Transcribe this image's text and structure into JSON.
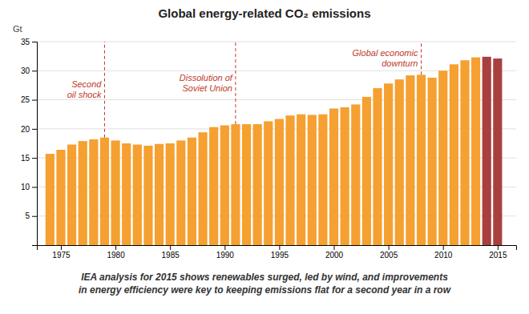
{
  "chart_data": {
    "type": "bar",
    "title": "Global energy-related CO₂ emissions",
    "y_label": "Gt",
    "x": [
      1974,
      1975,
      1976,
      1977,
      1978,
      1979,
      1980,
      1981,
      1982,
      1983,
      1984,
      1985,
      1986,
      1987,
      1988,
      1989,
      1990,
      1991,
      1992,
      1993,
      1994,
      1995,
      1996,
      1997,
      1998,
      1999,
      2000,
      2001,
      2002,
      2003,
      2004,
      2005,
      2006,
      2007,
      2008,
      2009,
      2010,
      2011,
      2012,
      2013,
      2014,
      2015
    ],
    "values": [
      15.7,
      16.4,
      17.3,
      17.9,
      18.2,
      18.5,
      18.0,
      17.5,
      17.3,
      17.1,
      17.4,
      17.5,
      18.0,
      18.5,
      19.4,
      20.3,
      20.6,
      20.8,
      20.8,
      20.8,
      21.3,
      21.7,
      22.3,
      22.5,
      22.4,
      22.5,
      23.5,
      23.7,
      24.2,
      25.5,
      27.0,
      27.8,
      28.5,
      29.2,
      29.3,
      28.8,
      30.0,
      31.1,
      31.8,
      32.3,
      32.4,
      32.1
    ],
    "colors": [
      "#F5A030",
      "#F5A030",
      "#F5A030",
      "#F5A030",
      "#F5A030",
      "#F5A030",
      "#F5A030",
      "#F5A030",
      "#F5A030",
      "#F5A030",
      "#F5A030",
      "#F5A030",
      "#F5A030",
      "#F5A030",
      "#F5A030",
      "#F5A030",
      "#F5A030",
      "#F5A030",
      "#F5A030",
      "#F5A030",
      "#F5A030",
      "#F5A030",
      "#F5A030",
      "#F5A030",
      "#F5A030",
      "#F5A030",
      "#F5A030",
      "#F5A030",
      "#F5A030",
      "#F5A030",
      "#F5A030",
      "#F5A030",
      "#F5A030",
      "#F5A030",
      "#F5A030",
      "#F5A030",
      "#F5A030",
      "#F5A030",
      "#F5A030",
      "#F5A030",
      "#A84040",
      "#A84040"
    ],
    "xlim": [
      1972.8,
      2016.7
    ],
    "xticks": [
      1975,
      1980,
      1985,
      1990,
      1995,
      2000,
      2005,
      2010,
      2015
    ],
    "ylim": [
      0,
      35
    ],
    "yticks": [
      5,
      10,
      15,
      20,
      25,
      30,
      35
    ],
    "grid": true,
    "annotations": [
      {
        "text": "Second\noil shock",
        "x": 1979
      },
      {
        "text": "Dissolution of\nSoviet Union",
        "x": 1991
      },
      {
        "text": "Global economic\ndownturn",
        "x": 2008
      }
    ],
    "footer": "IEA analysis for 2015 shows renewables surged, led by wind, and improvements\nin energy efficiency were key to keeping emissions flat for a second year in a row"
  }
}
